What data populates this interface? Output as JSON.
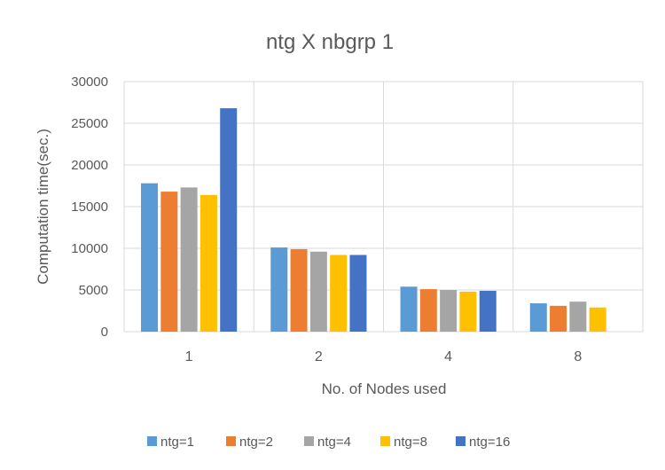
{
  "chart_data": {
    "type": "bar",
    "title": "ntg X nbgrp 1",
    "xlabel": "No. of Nodes used",
    "ylabel": "Computation time(sec.)",
    "categories": [
      "1",
      "2",
      "4",
      "8"
    ],
    "ylim": [
      0,
      30000
    ],
    "yticks": [
      0,
      5000,
      10000,
      15000,
      20000,
      25000,
      30000
    ],
    "grid": true,
    "legend_position": "bottom",
    "series": [
      {
        "name": "ntg=1",
        "color": "#5B9BD5",
        "values": [
          17800,
          10100,
          5400,
          3400
        ]
      },
      {
        "name": "ntg=2",
        "color": "#ED7D31",
        "values": [
          16800,
          9900,
          5100,
          3100
        ]
      },
      {
        "name": "ntg=4",
        "color": "#A5A5A5",
        "values": [
          17300,
          9600,
          5000,
          3600
        ]
      },
      {
        "name": "ntg=8",
        "color": "#FFC000",
        "values": [
          16400,
          9200,
          4800,
          2900
        ]
      },
      {
        "name": "ntg=16",
        "color": "#4472C4",
        "values": [
          26800,
          9200,
          4900,
          null
        ]
      }
    ]
  }
}
